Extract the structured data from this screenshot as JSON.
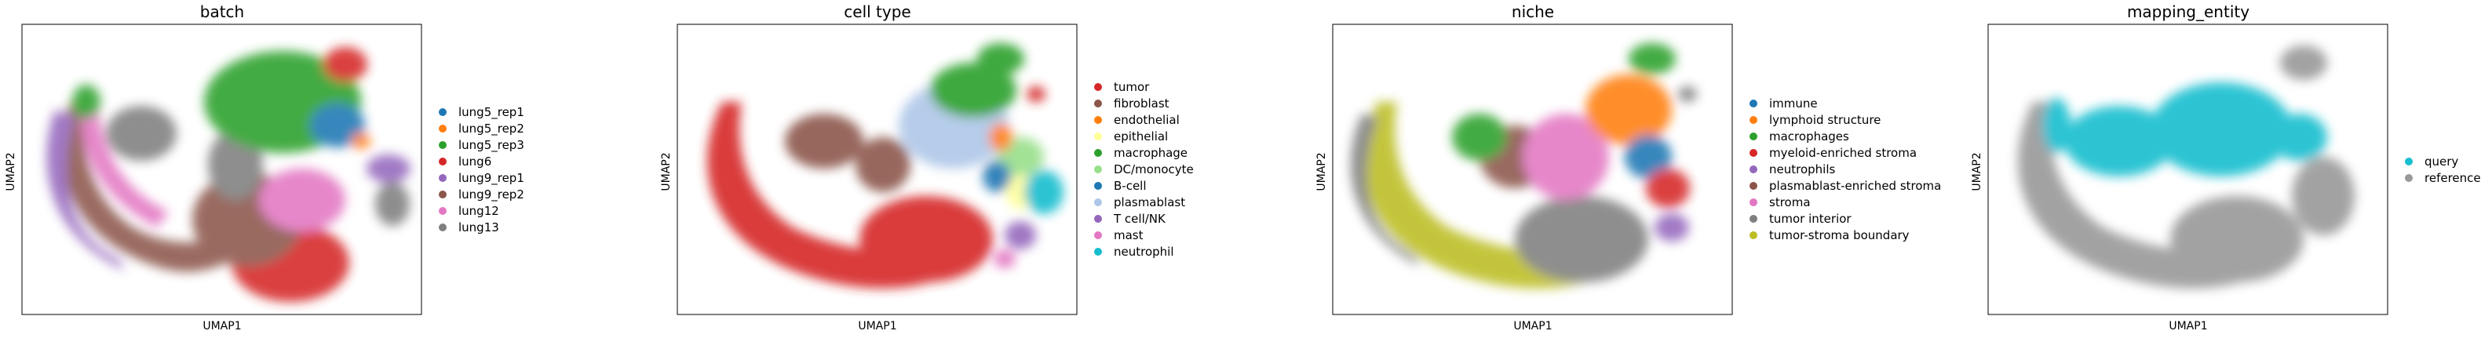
{
  "chart_data": [
    {
      "type": "scatter",
      "title": "batch",
      "xlabel": "UMAP1",
      "ylabel": "UMAP2",
      "legend_position": "right",
      "legend": [
        {
          "name": "lung5_rep1",
          "color": "#1f77b4"
        },
        {
          "name": "lung5_rep2",
          "color": "#ff7f0e"
        },
        {
          "name": "lung5_rep3",
          "color": "#2ca02c"
        },
        {
          "name": "lung6",
          "color": "#d62728"
        },
        {
          "name": "lung9_rep1",
          "color": "#9467bd"
        },
        {
          "name": "lung9_rep2",
          "color": "#8c564b"
        },
        {
          "name": "lung12",
          "color": "#e377c2"
        },
        {
          "name": "lung13",
          "color": "#7f7f7f"
        }
      ]
    },
    {
      "type": "scatter",
      "title": "cell type",
      "xlabel": "UMAP1",
      "ylabel": "UMAP2",
      "legend_position": "right",
      "legend": [
        {
          "name": "tumor",
          "color": "#d62728"
        },
        {
          "name": "fibroblast",
          "color": "#8c564b"
        },
        {
          "name": "endothelial",
          "color": "#ff7f0e"
        },
        {
          "name": "epithelial",
          "color": "#ffff99"
        },
        {
          "name": "macrophage",
          "color": "#2ca02c"
        },
        {
          "name": "DC/monocyte",
          "color": "#98df8a"
        },
        {
          "name": "B-cell",
          "color": "#1f77b4"
        },
        {
          "name": "plasmablast",
          "color": "#aec7e8"
        },
        {
          "name": "T cell/NK",
          "color": "#9467bd"
        },
        {
          "name": "mast",
          "color": "#e377c2"
        },
        {
          "name": "neutrophil",
          "color": "#17becf"
        }
      ]
    },
    {
      "type": "scatter",
      "title": "niche",
      "xlabel": "UMAP1",
      "ylabel": "UMAP2",
      "legend_position": "right",
      "legend": [
        {
          "name": "immune",
          "color": "#1f77b4"
        },
        {
          "name": "lymphoid structure",
          "color": "#ff7f0e"
        },
        {
          "name": "macrophages",
          "color": "#2ca02c"
        },
        {
          "name": "myeloid-enriched stroma",
          "color": "#d62728"
        },
        {
          "name": "neutrophils",
          "color": "#9467bd"
        },
        {
          "name": "plasmablast-enriched stroma",
          "color": "#8c564b"
        },
        {
          "name": "stroma",
          "color": "#e377c2"
        },
        {
          "name": "tumor interior",
          "color": "#7f7f7f"
        },
        {
          "name": "tumor-stroma boundary",
          "color": "#bcbd22"
        }
      ]
    },
    {
      "type": "scatter",
      "title": "mapping_entity",
      "xlabel": "UMAP1",
      "ylabel": "UMAP2",
      "legend_position": "right",
      "legend": [
        {
          "name": "query",
          "color": "#17becf"
        },
        {
          "name": "reference",
          "color": "#999999"
        }
      ]
    }
  ]
}
